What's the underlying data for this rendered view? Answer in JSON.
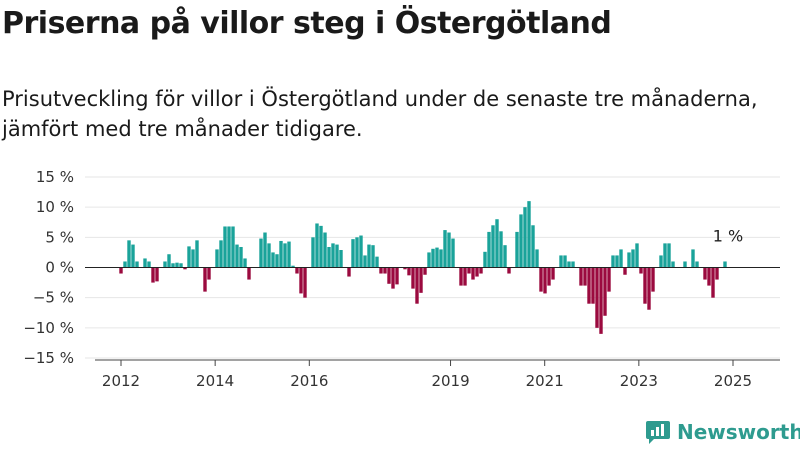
{
  "header": {
    "title": "Priserna på villor steg i Östergötland",
    "subtitle": "Prisutveckling för villor i Östergötland under de senaste tre månaderna, jämfört med tre månader tidigare."
  },
  "logo": {
    "text": "Newsworthy",
    "icon": "newsworthy-logo-icon"
  },
  "colors": {
    "positive": "#1aa39a",
    "negative": "#9b0a3f",
    "axis": "#333333"
  },
  "chart_data": {
    "type": "bar",
    "ylim": [
      -15,
      15
    ],
    "y_ticks": [
      15,
      10,
      5,
      0,
      -5,
      -10,
      -15
    ],
    "y_tick_labels": [
      "15 %",
      "10 %",
      "5 %",
      "0 %",
      "−5 %",
      "−10 %",
      "−15 %"
    ],
    "x_ticks": [
      {
        "label": "2012",
        "x": 2012.0
      },
      {
        "label": "2014",
        "x": 2014.0
      },
      {
        "label": "2016",
        "x": 2016.0
      },
      {
        "label": "2019",
        "x": 2019.0
      },
      {
        "label": "2021",
        "x": 2021.0
      },
      {
        "label": "2023",
        "x": 2023.0
      },
      {
        "label": "2025",
        "x": 2025.0
      }
    ],
    "x_start": 2012.0,
    "annotation": {
      "text": "1 %"
    },
    "values": [
      -1,
      1,
      4.5,
      3.8,
      1,
      0,
      1.5,
      1,
      -2.5,
      -2.3,
      0,
      1,
      2.2,
      0.7,
      0.8,
      0.7,
      -0.3,
      3.5,
      3,
      4.5,
      0,
      -4,
      -2,
      0,
      3,
      4.5,
      6.8,
      6.8,
      6.8,
      3.8,
      3.4,
      1.5,
      -2,
      0,
      0,
      4.8,
      5.8,
      4,
      2.5,
      2.2,
      4.4,
      4,
      4.3,
      0.3,
      -1,
      -4.3,
      -5,
      0,
      5,
      7.3,
      6.9,
      5.8,
      3.4,
      4,
      3.8,
      2.9,
      0,
      -1.5,
      4.7,
      5,
      5.3,
      2,
      3.8,
      3.7,
      1.8,
      -1,
      -1,
      -2.7,
      -3.5,
      -2.8,
      0,
      -0.3,
      -1.3,
      -3.5,
      -6,
      -4.2,
      -1.2,
      2.5,
      3.1,
      3.3,
      3,
      6.2,
      5.8,
      4.8,
      0,
      -3,
      -3,
      -1,
      -2,
      -1.5,
      -1,
      2.6,
      5.9,
      7,
      8,
      6,
      3.7,
      -1,
      0,
      5.9,
      8.8,
      10,
      11,
      7,
      3,
      -4,
      -4.3,
      -3,
      -2,
      0,
      2,
      2,
      1,
      1,
      0,
      -3,
      -3,
      -6,
      -6,
      -10,
      -11,
      -8,
      -4,
      2,
      2,
      3,
      -1.2,
      2.5,
      3,
      4,
      -1,
      -6,
      -7,
      -4,
      0,
      2,
      4,
      4,
      1,
      0,
      0,
      1,
      0,
      3,
      1,
      0,
      -2,
      -3,
      -5,
      -2,
      0,
      1
    ],
    "value_format": "percent"
  }
}
